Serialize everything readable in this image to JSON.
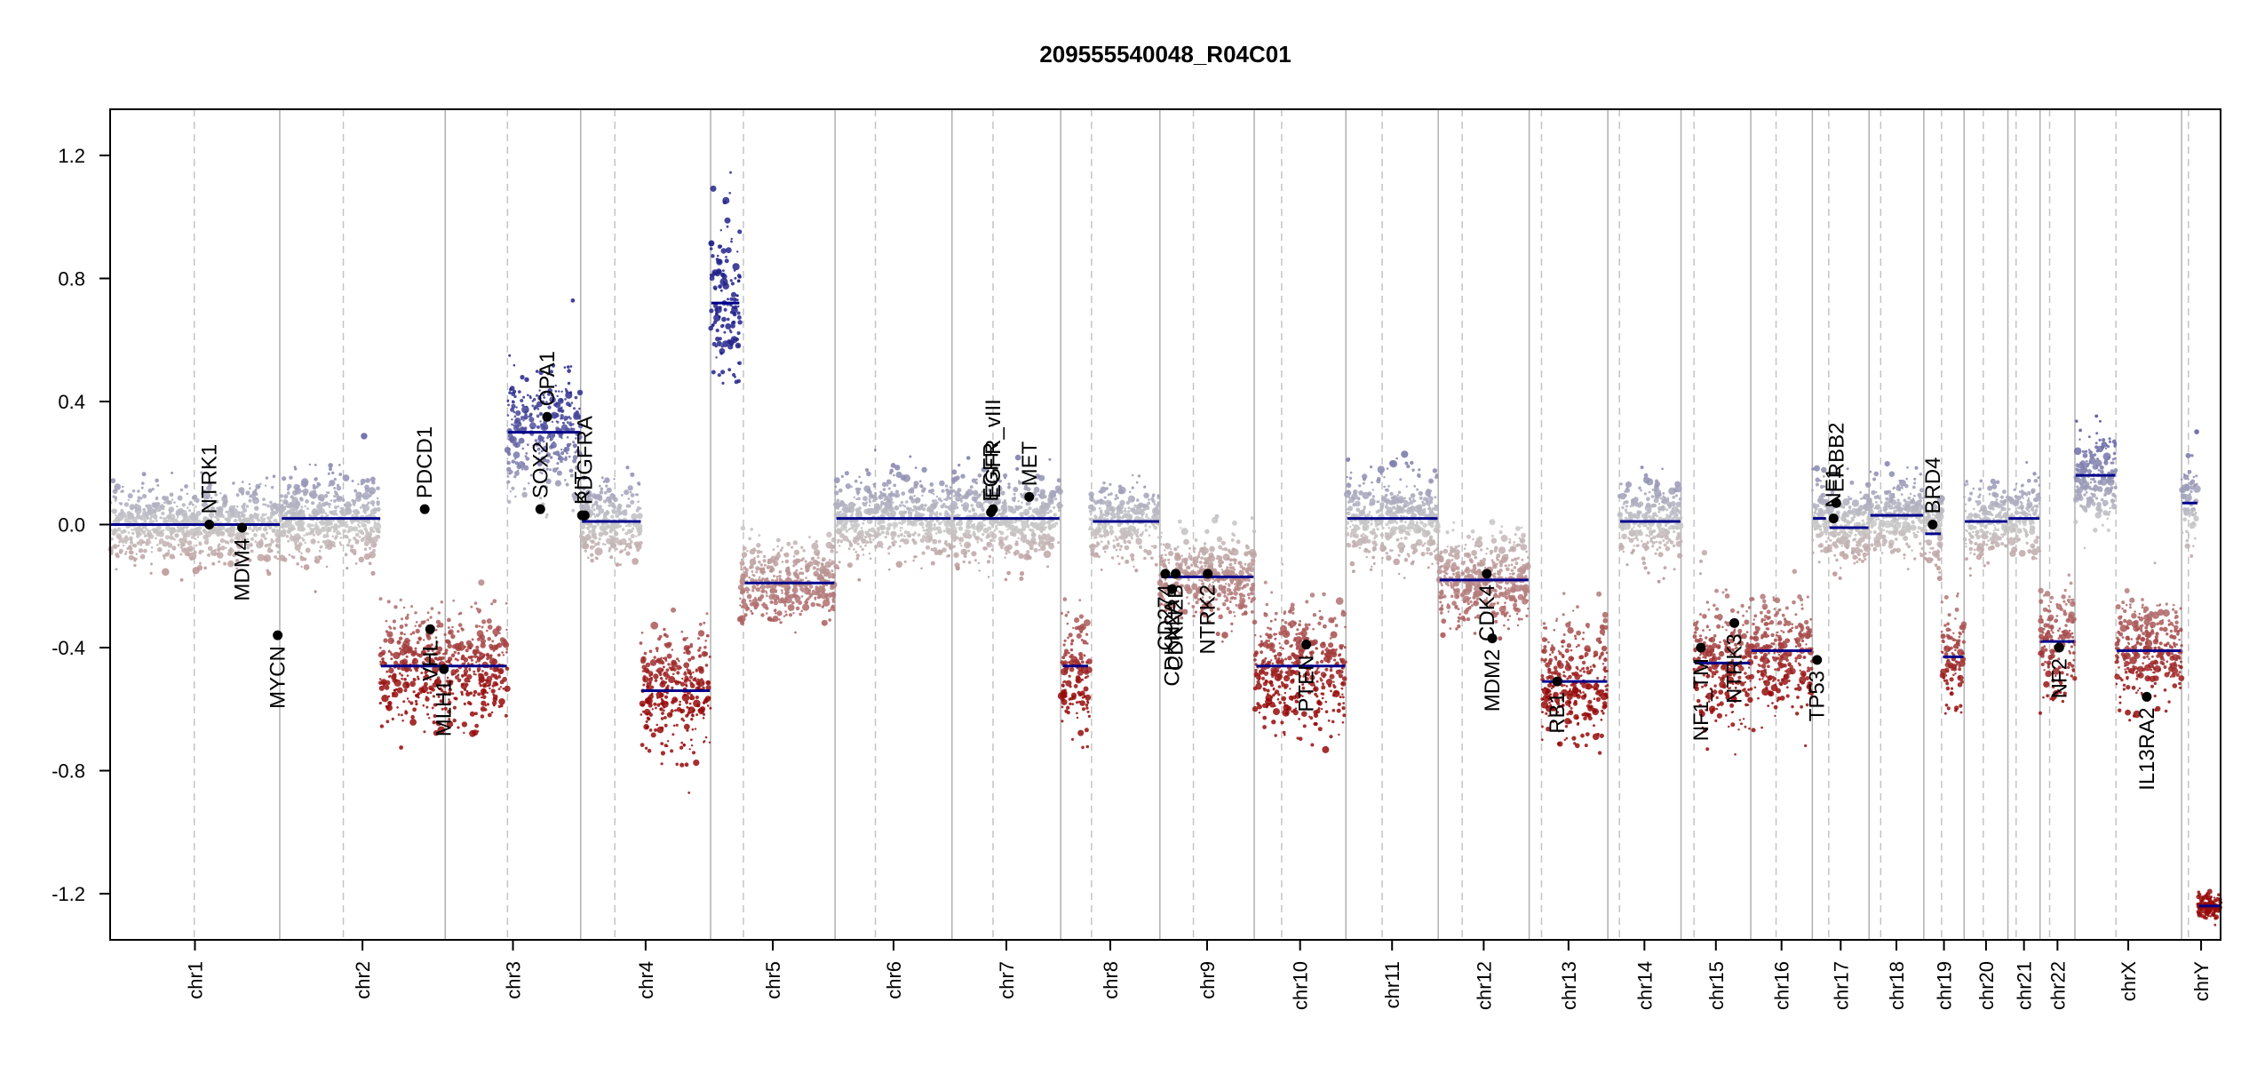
{
  "chart_data": {
    "type": "scatter",
    "title": "209555540048_R04C01",
    "xlabel": "",
    "ylabel": "",
    "ylim": [
      -1.35,
      1.35
    ],
    "yticks": [
      -1.2,
      -0.8,
      -0.4,
      0.0,
      0.4,
      0.8,
      1.2
    ],
    "ytick_labels": [
      "-1.2",
      "-0.8",
      "-0.4",
      "0.0",
      "0.4",
      "0.8",
      "1.2"
    ],
    "colors": {
      "gain": "#1f1f8f",
      "loss": "#a01010",
      "neutral": "#c8c8c8",
      "segment": "#00008b",
      "gene_point": "#000000"
    },
    "chromosomes": [
      {
        "name": "chr1",
        "start": 0,
        "end": 248,
        "centromere": 123
      },
      {
        "name": "chr2",
        "start": 248,
        "end": 490,
        "centromere": 341
      },
      {
        "name": "chr3",
        "start": 490,
        "end": 688,
        "centromere": 581
      },
      {
        "name": "chr4",
        "start": 688,
        "end": 878,
        "centromere": 738
      },
      {
        "name": "chr5",
        "start": 878,
        "end": 1060,
        "centromere": 926
      },
      {
        "name": "chr6",
        "start": 1060,
        "end": 1231,
        "centromere": 1119
      },
      {
        "name": "chr7",
        "start": 1231,
        "end": 1390,
        "centromere": 1291
      },
      {
        "name": "chr8",
        "start": 1390,
        "end": 1535,
        "centromere": 1435
      },
      {
        "name": "chr9",
        "start": 1535,
        "end": 1673,
        "centromere": 1584
      },
      {
        "name": "chr10",
        "start": 1673,
        "end": 1807,
        "centromere": 1713
      },
      {
        "name": "chr11",
        "start": 1807,
        "end": 1942,
        "centromere": 1860
      },
      {
        "name": "chr12",
        "start": 1942,
        "end": 2075,
        "centromere": 1977
      },
      {
        "name": "chr13",
        "start": 2075,
        "end": 2190,
        "centromere": 2093
      },
      {
        "name": "chr14",
        "start": 2190,
        "end": 2297,
        "centromere": 2207
      },
      {
        "name": "chr15",
        "start": 2297,
        "end": 2399,
        "centromere": 2316
      },
      {
        "name": "chr16",
        "start": 2399,
        "end": 2489,
        "centromere": 2436
      },
      {
        "name": "chr17",
        "start": 2489,
        "end": 2572,
        "centromere": 2513
      },
      {
        "name": "chr18",
        "start": 2572,
        "end": 2652,
        "centromere": 2589
      },
      {
        "name": "chr19",
        "start": 2652,
        "end": 2711,
        "centromere": 2678
      },
      {
        "name": "chr20",
        "start": 2711,
        "end": 2775,
        "centromere": 2739
      },
      {
        "name": "chr21",
        "start": 2775,
        "end": 2822,
        "centromere": 2787
      },
      {
        "name": "chr22",
        "start": 2822,
        "end": 2873,
        "centromere": 2836
      },
      {
        "name": "chrX",
        "start": 2873,
        "end": 3029,
        "centromere": 2933
      },
      {
        "name": "chrY",
        "start": 3029,
        "end": 3086,
        "centromere": 3039
      }
    ],
    "segments": [
      {
        "x0": 0,
        "x1": 248,
        "y": 0.0
      },
      {
        "x0": 251,
        "x1": 395,
        "y": 0.02
      },
      {
        "x0": 396,
        "x1": 488,
        "y": -0.46
      },
      {
        "x0": 492,
        "x1": 580,
        "y": -0.46
      },
      {
        "x0": 582,
        "x1": 688,
        "y": 0.3
      },
      {
        "x0": 690,
        "x1": 776,
        "y": 0.01
      },
      {
        "x0": 777,
        "x1": 877,
        "y": -0.54
      },
      {
        "x0": 879,
        "x1": 920,
        "y": 0.72
      },
      {
        "x0": 928,
        "x1": 1059,
        "y": -0.19
      },
      {
        "x0": 1062,
        "x1": 1229,
        "y": 0.02
      },
      {
        "x0": 1233,
        "x1": 1388,
        "y": 0.02
      },
      {
        "x0": 1393,
        "x1": 1430,
        "y": -0.46
      },
      {
        "x0": 1437,
        "x1": 1534,
        "y": 0.01
      },
      {
        "x0": 1537,
        "x1": 1672,
        "y": -0.17
      },
      {
        "x0": 1676,
        "x1": 1806,
        "y": -0.46
      },
      {
        "x0": 1809,
        "x1": 1941,
        "y": 0.02
      },
      {
        "x0": 1944,
        "x1": 2074,
        "y": -0.18
      },
      {
        "x0": 2094,
        "x1": 2189,
        "y": -0.51
      },
      {
        "x0": 2208,
        "x1": 2296,
        "y": 0.01
      },
      {
        "x0": 2317,
        "x1": 2398,
        "y": -0.45
      },
      {
        "x0": 2400,
        "x1": 2488,
        "y": -0.41
      },
      {
        "x0": 2490,
        "x1": 2509,
        "y": 0.02
      },
      {
        "x0": 2514,
        "x1": 2571,
        "y": -0.01
      },
      {
        "x0": 2574,
        "x1": 2651,
        "y": 0.03
      },
      {
        "x0": 2654,
        "x1": 2677,
        "y": -0.03
      },
      {
        "x0": 2680,
        "x1": 2710,
        "y": -0.43
      },
      {
        "x0": 2712,
        "x1": 2774,
        "y": 0.01
      },
      {
        "x0": 2776,
        "x1": 2821,
        "y": 0.02
      },
      {
        "x0": 2823,
        "x1": 2872,
        "y": -0.38
      },
      {
        "x0": 2874,
        "x1": 2932,
        "y": 0.16
      },
      {
        "x0": 2934,
        "x1": 3028,
        "y": -0.41
      },
      {
        "x0": 3030,
        "x1": 3052,
        "y": 0.07
      },
      {
        "x0": 3054,
        "x1": 3086,
        "y": -1.24
      }
    ],
    "profile": [
      {
        "x0": 0,
        "x1": 248,
        "mean": 0.0,
        "sd": 0.06
      },
      {
        "x0": 248,
        "x1": 395,
        "mean": 0.02,
        "sd": 0.07
      },
      {
        "x0": 395,
        "x1": 490,
        "mean": -0.46,
        "sd": 0.09
      },
      {
        "x0": 490,
        "x1": 581,
        "mean": -0.46,
        "sd": 0.09
      },
      {
        "x0": 581,
        "x1": 688,
        "mean": 0.3,
        "sd": 0.1
      },
      {
        "x0": 688,
        "x1": 776,
        "mean": 0.01,
        "sd": 0.06
      },
      {
        "x0": 776,
        "x1": 878,
        "mean": -0.54,
        "sd": 0.1
      },
      {
        "x0": 878,
        "x1": 921,
        "mean": 0.72,
        "sd": 0.15
      },
      {
        "x0": 921,
        "x1": 1060,
        "mean": -0.19,
        "sd": 0.06
      },
      {
        "x0": 1060,
        "x1": 1231,
        "mean": 0.02,
        "sd": 0.07
      },
      {
        "x0": 1231,
        "x1": 1390,
        "mean": 0.02,
        "sd": 0.07
      },
      {
        "x0": 1390,
        "x1": 1432,
        "mean": -0.46,
        "sd": 0.09
      },
      {
        "x0": 1432,
        "x1": 1535,
        "mean": 0.01,
        "sd": 0.06
      },
      {
        "x0": 1535,
        "x1": 1673,
        "mean": -0.17,
        "sd": 0.07
      },
      {
        "x0": 1673,
        "x1": 1807,
        "mean": -0.46,
        "sd": 0.1
      },
      {
        "x0": 1807,
        "x1": 1942,
        "mean": 0.02,
        "sd": 0.07
      },
      {
        "x0": 1942,
        "x1": 2075,
        "mean": -0.18,
        "sd": 0.07
      },
      {
        "x0": 2093,
        "x1": 2190,
        "mean": -0.51,
        "sd": 0.1
      },
      {
        "x0": 2207,
        "x1": 2297,
        "mean": 0.01,
        "sd": 0.07
      },
      {
        "x0": 2316,
        "x1": 2399,
        "mean": -0.45,
        "sd": 0.1
      },
      {
        "x0": 2399,
        "x1": 2489,
        "mean": -0.41,
        "sd": 0.1
      },
      {
        "x0": 2489,
        "x1": 2512,
        "mean": 0.02,
        "sd": 0.06
      },
      {
        "x0": 2512,
        "x1": 2572,
        "mean": -0.01,
        "sd": 0.06
      },
      {
        "x0": 2572,
        "x1": 2652,
        "mean": 0.03,
        "sd": 0.06
      },
      {
        "x0": 2652,
        "x1": 2678,
        "mean": -0.03,
        "sd": 0.06
      },
      {
        "x0": 2678,
        "x1": 2711,
        "mean": -0.43,
        "sd": 0.08
      },
      {
        "x0": 2711,
        "x1": 2775,
        "mean": 0.01,
        "sd": 0.07
      },
      {
        "x0": 2775,
        "x1": 2822,
        "mean": 0.02,
        "sd": 0.06
      },
      {
        "x0": 2822,
        "x1": 2873,
        "mean": -0.38,
        "sd": 0.09
      },
      {
        "x0": 2873,
        "x1": 2933,
        "mean": 0.16,
        "sd": 0.07
      },
      {
        "x0": 2933,
        "x1": 3029,
        "mean": -0.41,
        "sd": 0.08
      },
      {
        "x0": 3029,
        "x1": 3052,
        "mean": 0.07,
        "sd": 0.07
      },
      {
        "x0": 3052,
        "x1": 3086,
        "mean": -1.24,
        "sd": 0.02
      }
    ],
    "genes": [
      {
        "name": "NTRK1",
        "x": 145,
        "y": 0.0,
        "label_side": "up"
      },
      {
        "name": "MDM4",
        "x": 193,
        "y": -0.01,
        "label_side": "down"
      },
      {
        "name": "MYCN",
        "x": 245,
        "y": -0.36,
        "label_side": "down"
      },
      {
        "name": "PDCD1",
        "x": 460,
        "y": 0.05,
        "label_side": "up"
      },
      {
        "name": "VHL",
        "x": 468,
        "y": -0.34,
        "label_side": "down"
      },
      {
        "name": "MLH1",
        "x": 488,
        "y": -0.47,
        "label_side": "down"
      },
      {
        "name": "SOX2",
        "x": 629,
        "y": 0.05,
        "label_side": "up"
      },
      {
        "name": "OPA1",
        "x": 639,
        "y": 0.35,
        "label_side": "up"
      },
      {
        "name": "KIT",
        "x": 690,
        "y": 0.03,
        "label_side": "up"
      },
      {
        "name": "PDGFRA",
        "x": 694,
        "y": 0.03,
        "label_side": "up"
      },
      {
        "name": "EGFR",
        "x": 1288,
        "y": 0.04,
        "label_side": "up"
      },
      {
        "name": "EGFR_vIII",
        "x": 1291,
        "y": 0.05,
        "label_side": "up"
      },
      {
        "name": "MET",
        "x": 1344,
        "y": 0.09,
        "label_side": "up"
      },
      {
        "name": "CD274",
        "x": 1543,
        "y": -0.16,
        "label_side": "down"
      },
      {
        "name": "CDKN2A",
        "x": 1553,
        "y": -0.21,
        "label_side": "down"
      },
      {
        "name": "CDKN2B",
        "x": 1558,
        "y": -0.16,
        "label_side": "down"
      },
      {
        "name": "NTRK2",
        "x": 1605,
        "y": -0.16,
        "label_side": "down"
      },
      {
        "name": "PTEN",
        "x": 1749,
        "y": -0.39,
        "label_side": "down"
      },
      {
        "name": "CDK4",
        "x": 2013,
        "y": -0.16,
        "label_side": "down"
      },
      {
        "name": "MDM2",
        "x": 2021,
        "y": -0.37,
        "label_side": "down"
      },
      {
        "name": "RB1",
        "x": 2116,
        "y": -0.51,
        "label_side": "down"
      },
      {
        "name": "NF1_TM",
        "x": 2326,
        "y": -0.4,
        "label_side": "down"
      },
      {
        "name": "NTRK3",
        "x": 2375,
        "y": -0.32,
        "label_side": "down"
      },
      {
        "name": "TP53",
        "x": 2496,
        "y": -0.44,
        "label_side": "down"
      },
      {
        "name": "NF1",
        "x": 2520,
        "y": 0.02,
        "label_side": "up"
      },
      {
        "name": "ERBB2",
        "x": 2524,
        "y": 0.07,
        "label_side": "up"
      },
      {
        "name": "BRD4",
        "x": 2665,
        "y": 0.0,
        "label_side": "up"
      },
      {
        "name": "NF2",
        "x": 2850,
        "y": -0.4,
        "label_side": "down"
      },
      {
        "name": "IL13RA2",
        "x": 2978,
        "y": -0.56,
        "label_side": "down"
      }
    ]
  }
}
